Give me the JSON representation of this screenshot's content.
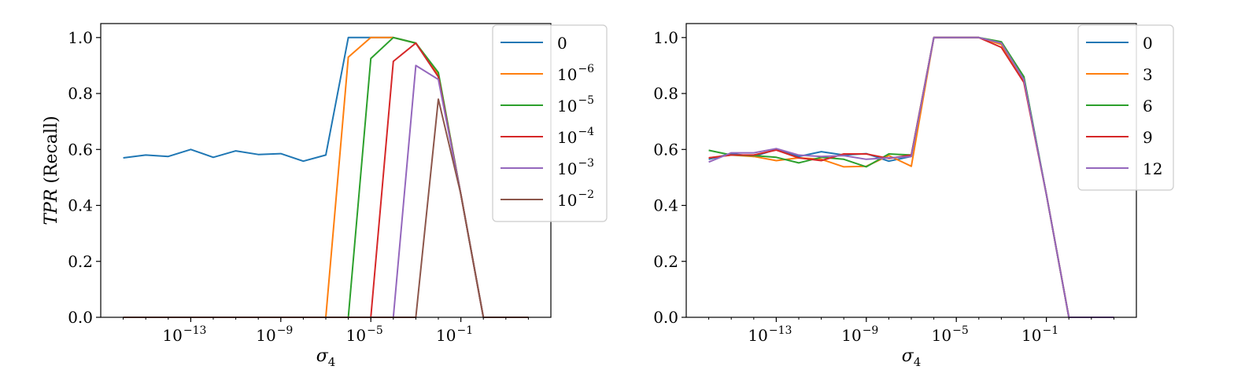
{
  "chart_data": [
    {
      "type": "line",
      "xscale": "log",
      "x_tick_labels": [
        "10",
        "10",
        "10",
        "10"
      ],
      "x_tick_exponents": [
        "−13",
        "−9",
        "−5",
        "−1"
      ],
      "x_tick_values": [
        1e-13,
        1e-09,
        1e-05,
        0.1
      ],
      "xlim": [
        1e-17,
        1000
      ],
      "ylim": [
        0,
        1.05
      ],
      "y_ticks": [
        0.0,
        0.2,
        0.4,
        0.6,
        0.8,
        1.0
      ],
      "y_tick_labels": [
        "0.0",
        "0.2",
        "0.4",
        "0.6",
        "0.8",
        "1.0"
      ],
      "xlabel_base": "σ",
      "xlabel_sub": "4",
      "ylabel_italic": "TPR",
      "ylabel_rest": " (Recall)",
      "legend_position": "top-right",
      "x": [
        1e-16,
        1e-15,
        1e-14,
        1e-13,
        1e-12,
        1e-11,
        1e-10,
        1e-09,
        1e-08,
        1e-07,
        1e-06,
        1e-05,
        0.0001,
        0.001,
        0.01,
        0.1,
        1,
        10,
        100
      ],
      "series": [
        {
          "name": "0",
          "label_base": "0",
          "label_exp": "",
          "color": "#1f77b4",
          "values": [
            0.57,
            0.58,
            0.575,
            0.6,
            0.572,
            0.595,
            0.582,
            0.585,
            0.558,
            0.58,
            1.0,
            1.0,
            1.0,
            0.98,
            0.86,
            0.44,
            0.0,
            0.0,
            0.0
          ]
        },
        {
          "name": "10^-6",
          "label_base": "10",
          "label_exp": "−6",
          "color": "#ff7f0e",
          "values": [
            0,
            0,
            0,
            0,
            0,
            0,
            0,
            0,
            0,
            0,
            0.93,
            1.0,
            1.0,
            0.98,
            0.87,
            0.44,
            0.0,
            0.0,
            0.0
          ]
        },
        {
          "name": "10^-5",
          "label_base": "10",
          "label_exp": "−5",
          "color": "#2ca02c",
          "values": [
            0,
            0,
            0,
            0,
            0,
            0,
            0,
            0,
            0,
            0,
            0,
            0.925,
            1.0,
            0.98,
            0.875,
            0.44,
            0.0,
            0.0,
            0.0
          ]
        },
        {
          "name": "10^-4",
          "label_base": "10",
          "label_exp": "−4",
          "color": "#d62728",
          "values": [
            0,
            0,
            0,
            0,
            0,
            0,
            0,
            0,
            0,
            0,
            0,
            0,
            0.915,
            0.98,
            0.86,
            0.44,
            0.0,
            0.0,
            0.0
          ]
        },
        {
          "name": "10^-3",
          "label_base": "10",
          "label_exp": "−3",
          "color": "#9467bd",
          "values": [
            0,
            0,
            0,
            0,
            0,
            0,
            0,
            0,
            0,
            0,
            0,
            0,
            0,
            0.9,
            0.85,
            0.44,
            0.0,
            0.0,
            0.0
          ]
        },
        {
          "name": "10^-2",
          "label_base": "10",
          "label_exp": "−2",
          "color": "#8c564b",
          "values": [
            0,
            0,
            0,
            0,
            0,
            0,
            0,
            0,
            0,
            0,
            0,
            0,
            0,
            0,
            0.78,
            0.44,
            0.0,
            0.0,
            0.0
          ]
        }
      ]
    },
    {
      "type": "line",
      "xscale": "log",
      "x_tick_labels": [
        "10",
        "10",
        "10",
        "10"
      ],
      "x_tick_exponents": [
        "−13",
        "−9",
        "−5",
        "−1"
      ],
      "x_tick_values": [
        1e-13,
        1e-09,
        1e-05,
        0.1
      ],
      "xlim": [
        1e-17,
        1000
      ],
      "ylim": [
        0,
        1.05
      ],
      "y_ticks": [
        0.0,
        0.2,
        0.4,
        0.6,
        0.8,
        1.0
      ],
      "y_tick_labels": [
        "0.0",
        "0.2",
        "0.4",
        "0.6",
        "0.8",
        "1.0"
      ],
      "xlabel_base": "σ",
      "xlabel_sub": "4",
      "ylabel_italic": "",
      "ylabel_rest": "",
      "legend_position": "top-right",
      "x": [
        1e-16,
        1e-15,
        1e-14,
        1e-13,
        1e-12,
        1e-11,
        1e-10,
        1e-09,
        1e-08,
        1e-07,
        1e-06,
        1e-05,
        0.0001,
        0.001,
        0.01,
        0.1,
        1,
        10,
        100
      ],
      "series": [
        {
          "name": "0",
          "label_base": "0",
          "label_exp": "",
          "color": "#1f77b4",
          "values": [
            0.565,
            0.585,
            0.575,
            0.6,
            0.575,
            0.592,
            0.58,
            0.585,
            0.558,
            0.575,
            1.0,
            1.0,
            1.0,
            0.98,
            0.86,
            0.44,
            0.0,
            0.0,
            0.0
          ]
        },
        {
          "name": "3",
          "label_base": "3",
          "label_exp": "",
          "color": "#ff7f0e",
          "values": [
            0.57,
            0.58,
            0.575,
            0.56,
            0.57,
            0.565,
            0.538,
            0.54,
            0.578,
            0.54,
            1.0,
            1.0,
            1.0,
            0.975,
            0.85,
            0.44,
            0.0,
            0.0,
            0.0
          ]
        },
        {
          "name": "6",
          "label_base": "6",
          "label_exp": "",
          "color": "#2ca02c",
          "values": [
            0.597,
            0.58,
            0.578,
            0.572,
            0.552,
            0.572,
            0.565,
            0.538,
            0.584,
            0.58,
            1.0,
            1.0,
            1.0,
            0.985,
            0.86,
            0.44,
            0.0,
            0.0,
            0.0
          ]
        },
        {
          "name": "9",
          "label_base": "9",
          "label_exp": "",
          "color": "#d62728",
          "values": [
            0.57,
            0.58,
            0.58,
            0.598,
            0.57,
            0.56,
            0.584,
            0.584,
            0.568,
            0.58,
            1.0,
            1.0,
            1.0,
            0.965,
            0.84,
            0.44,
            0.0,
            0.0,
            0.0
          ]
        },
        {
          "name": "12",
          "label_base": "12",
          "label_exp": "",
          "color": "#9467bd",
          "values": [
            0.555,
            0.588,
            0.588,
            0.603,
            0.58,
            0.575,
            0.578,
            0.565,
            0.57,
            0.575,
            1.0,
            1.0,
            1.0,
            0.98,
            0.85,
            0.44,
            0.0,
            0.0,
            0.0
          ]
        }
      ]
    }
  ]
}
